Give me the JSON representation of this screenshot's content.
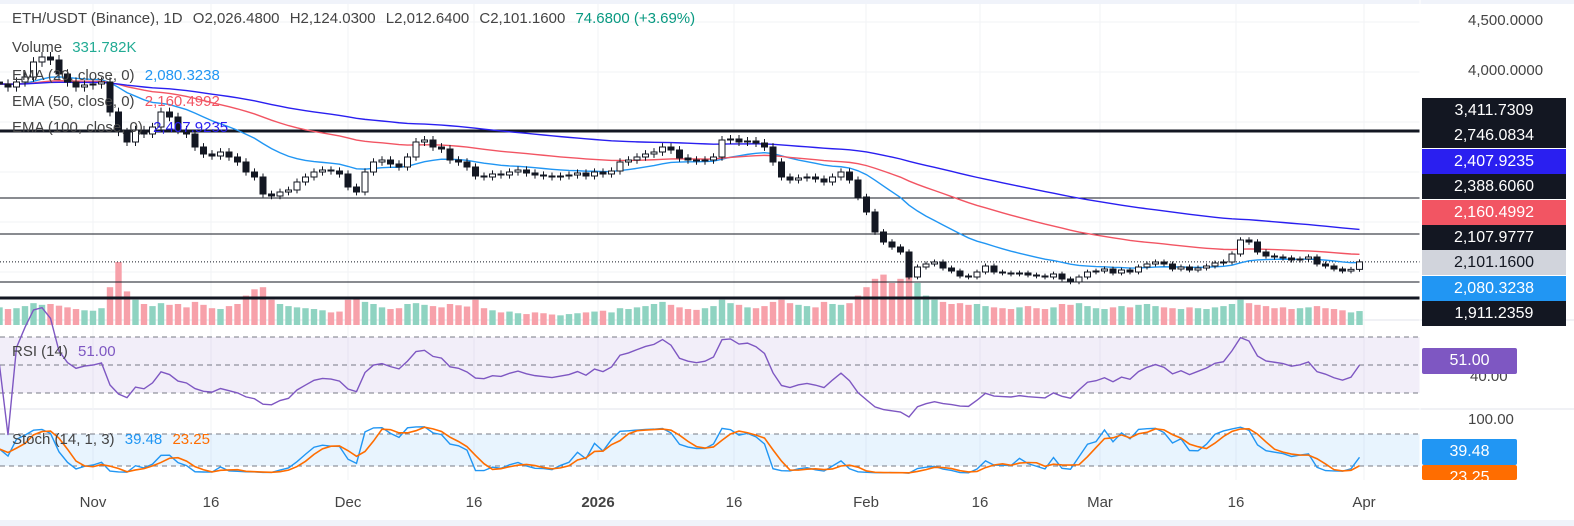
{
  "header": {
    "symbol": "ETH/USDT (Binance), 1D",
    "open": "O2,026.4800",
    "high": "H2,124.0300",
    "low": "L2,012.6400",
    "close": "C2,101.1600",
    "change": "74.6800 (+3.69%)"
  },
  "legends": {
    "volume_label": "Volume",
    "volume_value": "331.782K",
    "ema20_label": "EMA (20, close, 0)",
    "ema20_value": "2,080.3238",
    "ema50_label": "EMA (50, close, 0)",
    "ema50_value": "2,160.4992",
    "ema100_label": "EMA (100, close, 0)",
    "ema100_value": "2,407.9235",
    "rsi_label": "RSI (14)",
    "rsi_value": "51.00",
    "stoch_label": "Stoch (14, 1, 3)",
    "stoch_k_value": "39.48",
    "stoch_d_value": "23.25"
  },
  "price_axis": {
    "ticks": [
      "4,500.0000",
      "4,000.0000"
    ],
    "tags": [
      {
        "text": "3,411.7309",
        "color": "#131722"
      },
      {
        "text": "2,746.0834",
        "color": "#131722"
      },
      {
        "text": "2,407.9235",
        "color": "#2a1ff0"
      },
      {
        "text": "2,388.6060",
        "color": "#131722"
      },
      {
        "text": "2,160.4992",
        "color": "#f25563"
      },
      {
        "text": "2,107.9777",
        "color": "#131722"
      },
      {
        "text": "2,101.1600",
        "color": "#d1d4dc"
      },
      {
        "text": "2,080.3238",
        "color": "#2196f3"
      },
      {
        "text": "1,911.2359",
        "color": "#131722"
      }
    ]
  },
  "rsi_axis": {
    "tick": "40.00",
    "tag": "51.00"
  },
  "stoch_axis": {
    "tick": "100.00",
    "tag_k": "39.48",
    "tag_d": "23.25"
  },
  "time_axis": [
    "Nov",
    "16",
    "Dec",
    "16",
    "2026",
    "16",
    "Feb",
    "16",
    "Mar",
    "16",
    "Apr"
  ],
  "colors": {
    "up": "#ffffff",
    "down": "#131722",
    "ema20": "#2196f3",
    "ema50": "#f25563",
    "ema100": "#2a1ff0",
    "rsi": "#7e57c2",
    "stoch_k": "#2196f3",
    "stoch_d": "#ff6d00",
    "vol_up": "#8fd3c1",
    "vol_down": "#f7a1aa"
  },
  "chart_data": {
    "type": "candlestick",
    "start_date": "2025-10-21",
    "interval": "1D",
    "ylim": [
      1800,
      4500
    ],
    "closes": [
      3880,
      3850,
      3900,
      3950,
      4100,
      4150,
      4120,
      3980,
      3900,
      3850,
      3870,
      3880,
      3900,
      3600,
      3400,
      3300,
      3420,
      3380,
      3450,
      3600,
      3550,
      3420,
      3380,
      3250,
      3180,
      3160,
      3200,
      3150,
      3100,
      3000,
      2950,
      2780,
      2760,
      2800,
      2820,
      2900,
      2950,
      3000,
      3020,
      3010,
      2980,
      2850,
      2800,
      3000,
      3100,
      3120,
      3080,
      3050,
      3150,
      3300,
      3320,
      3250,
      3230,
      3120,
      3100,
      3050,
      2960,
      2950,
      2980,
      2970,
      3000,
      3020,
      2990,
      2970,
      2960,
      2950,
      2960,
      2970,
      2990,
      2960,
      3000,
      2980,
      3010,
      3100,
      3120,
      3150,
      3180,
      3200,
      3250,
      3220,
      3140,
      3120,
      3110,
      3120,
      3150,
      3320,
      3330,
      3300,
      3310,
      3290,
      3250,
      3100,
      2950,
      2920,
      2940,
      2950,
      2930,
      2900,
      2950,
      3000,
      2920,
      2750,
      2600,
      2400,
      2300,
      2250,
      2200,
      1950,
      2050,
      2080,
      2100,
      2040,
      2010,
      1960,
      1950,
      2000,
      2060,
      2000,
      1990,
      1980,
      1990,
      1970,
      1960,
      1950,
      1980,
      1930,
      1900,
      1950,
      2000,
      2010,
      2030,
      1990,
      2020,
      2000,
      2050,
      2080,
      2100,
      2080,
      2030,
      2050,
      2020,
      2040,
      2060,
      2090,
      2100,
      2180,
      2320,
      2300,
      2200,
      2160,
      2150,
      2140,
      2120,
      2130,
      2150,
      2080,
      2060,
      2030,
      2010,
      2026.48,
      2101.16
    ],
    "volumes_k": [
      420,
      380,
      400,
      450,
      520,
      480,
      500,
      460,
      420,
      380,
      350,
      340,
      400,
      900,
      1500,
      800,
      600,
      500,
      450,
      520,
      480,
      500,
      420,
      550,
      480,
      400,
      380,
      450,
      500,
      700,
      850,
      900,
      600,
      500,
      450,
      420,
      400,
      380,
      350,
      300,
      320,
      600,
      650,
      550,
      500,
      420,
      380,
      400,
      500,
      520,
      480,
      450,
      420,
      500,
      470,
      440,
      600,
      400,
      350,
      300,
      320,
      280,
      260,
      300,
      280,
      250,
      230,
      260,
      280,
      300,
      320,
      340,
      300,
      400,
      380,
      420,
      450,
      500,
      550,
      480,
      420,
      380,
      360,
      400,
      450,
      600,
      520,
      480,
      420,
      400,
      450,
      550,
      600,
      520,
      480,
      450,
      420,
      550,
      500,
      480,
      520,
      700,
      900,
      1100,
      1200,
      1000,
      1100,
      1400,
      1000,
      700,
      600,
      550,
      500,
      520,
      480,
      500,
      450,
      420,
      400,
      380,
      420,
      450,
      400,
      380,
      420,
      500,
      480,
      520,
      450,
      400,
      380,
      420,
      450,
      420,
      480,
      500,
      450,
      420,
      400,
      380,
      420,
      400,
      380,
      420,
      450,
      500,
      600,
      520,
      480,
      450,
      400,
      420,
      380,
      400,
      420,
      450,
      400,
      380,
      350,
      300,
      331.782
    ],
    "horizontal_levels": [
      3411.7309,
      2746.0834,
      2388.606,
      2107.9777,
      1911.2359
    ],
    "rsi_bands": [
      70,
      50,
      30
    ],
    "stoch_bands": [
      80,
      20
    ]
  }
}
